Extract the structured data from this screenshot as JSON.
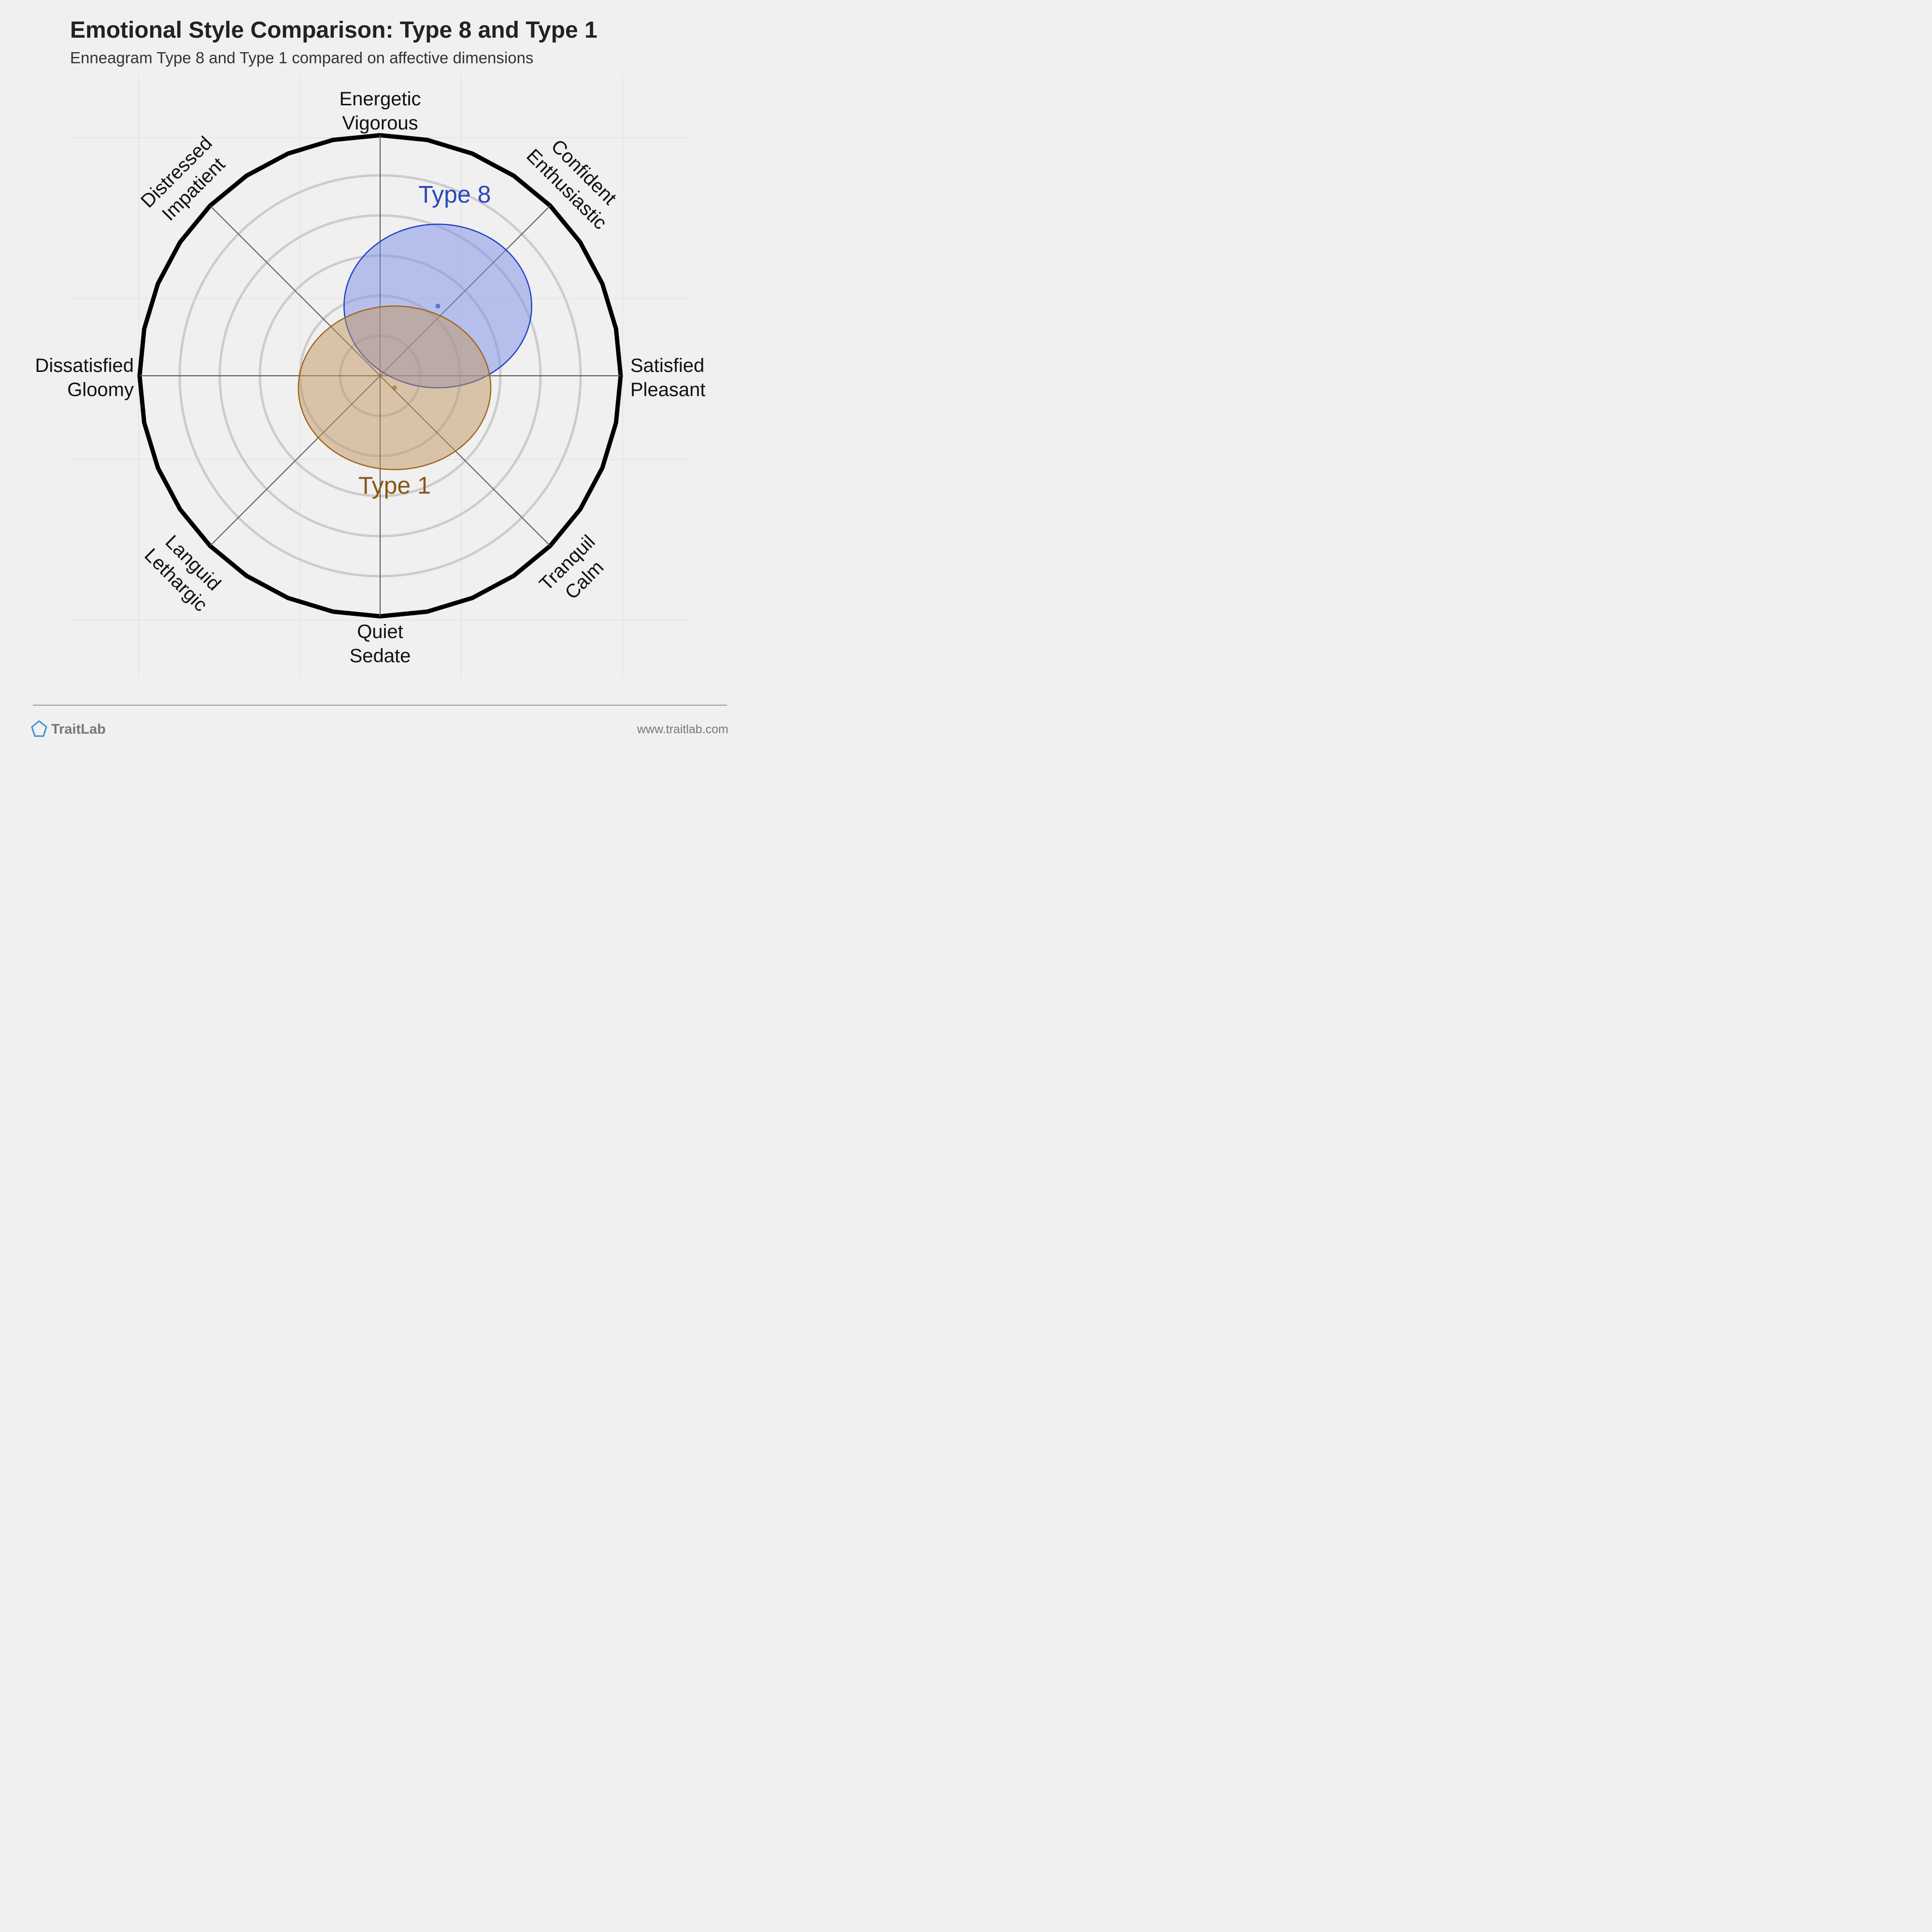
{
  "header": {
    "title": "Emotional Style Comparison: Type 8 and Type 1",
    "subtitle": "Enneagram Type 8 and Type 1 compared on affective dimensions"
  },
  "footer": {
    "brand": "TraitLab",
    "url": "www.traitlab.com"
  },
  "colors": {
    "background": "#f0f0f0",
    "type8_fill": "#7b8ee6",
    "type8_stroke": "#1f3fc8",
    "type1_fill": "#c09660",
    "type1_stroke": "#a0651e",
    "ring": "#cccccc",
    "outer_ring": "#000000"
  },
  "chart_data": {
    "type": "circumplex",
    "xlim": [
      -1,
      1
    ],
    "ylim": [
      -1,
      1
    ],
    "grid": true,
    "axes": [
      {
        "angle_deg": 90,
        "line1": "Energetic",
        "line2": "Vigorous"
      },
      {
        "angle_deg": 45,
        "line1": "Confident",
        "line2": "Enthusiastic"
      },
      {
        "angle_deg": 0,
        "line1": "Satisfied",
        "line2": "Pleasant"
      },
      {
        "angle_deg": -45,
        "line1": "Tranquil",
        "line2": "Calm"
      },
      {
        "angle_deg": -90,
        "line1": "Quiet",
        "line2": "Sedate"
      },
      {
        "angle_deg": -135,
        "line1": "Languid",
        "line2": "Lethargic"
      },
      {
        "angle_deg": 180,
        "line1": "Dissatisfied",
        "line2": "Gloomy"
      },
      {
        "angle_deg": 135,
        "line1": "Distressed",
        "line2": "Impatient"
      }
    ],
    "series": [
      {
        "name": "Type 8",
        "x": 0.24,
        "y": 0.29,
        "rx": 0.39,
        "ry": 0.34
      },
      {
        "name": "Type 1",
        "x": 0.06,
        "y": -0.05,
        "rx": 0.4,
        "ry": 0.34
      }
    ]
  }
}
